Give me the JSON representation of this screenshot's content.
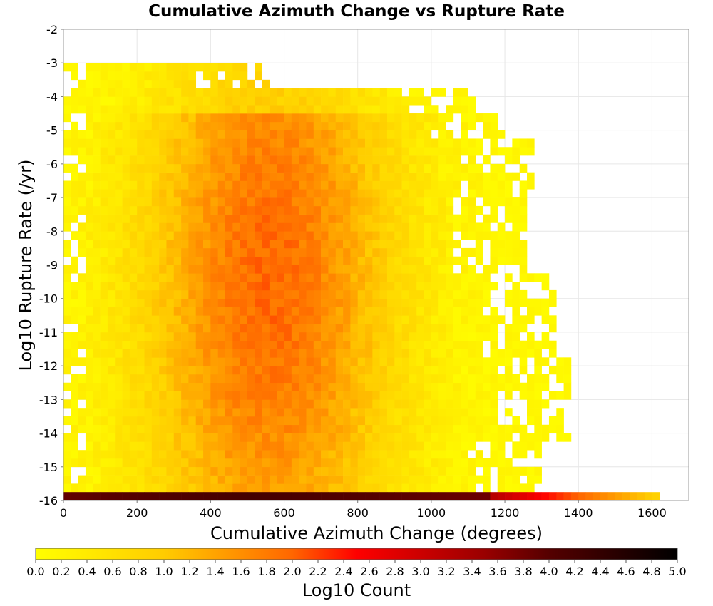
{
  "chart_data": {
    "type": "heatmap",
    "title": "Cumulative Azimuth Change vs Rupture Rate",
    "xlabel": "Cumulative Azimuth Change (degrees)",
    "ylabel": "Log10 Rupture Rate (/yr)",
    "xlim": [
      0,
      1700
    ],
    "ylim": [
      -16,
      -2
    ],
    "x_ticks": [
      0,
      200,
      400,
      600,
      800,
      1000,
      1200,
      1400,
      1600
    ],
    "x_tick_labels": [
      "0",
      "200",
      "400",
      "600",
      "800",
      "1000",
      "1200",
      "1400",
      "1600"
    ],
    "y_ticks": [
      -2,
      -3,
      -4,
      -5,
      -6,
      -7,
      -8,
      -9,
      -10,
      -11,
      -12,
      -13,
      -14,
      -15,
      -16
    ],
    "y_tick_labels": [
      "-2",
      "-3",
      "-4",
      "-5",
      "-6",
      "-7",
      "-8",
      "-9",
      "-10",
      "-11",
      "-12",
      "-13",
      "-14",
      "-15",
      "-16"
    ],
    "grid": true,
    "bin_width_x": 20,
    "bin_height_y": 0.25,
    "colorbar": {
      "label": "Log10 Count",
      "range": [
        0,
        5
      ],
      "tick_labels": [
        "0.0",
        "0.2",
        "0.4",
        "0.6",
        "0.8",
        "1.0",
        "1.2",
        "1.4",
        "1.6",
        "1.8",
        "2.0",
        "2.2",
        "2.4",
        "2.6",
        "2.8",
        "3.0",
        "3.2",
        "3.4",
        "3.6",
        "3.8",
        "4.0",
        "4.2",
        "4.4",
        "4.6",
        "4.8",
        "5.0"
      ],
      "colormap": [
        {
          "value": 0.0,
          "color": "#ffff00"
        },
        {
          "value": 1.0,
          "color": "#ffcc00"
        },
        {
          "value": 2.0,
          "color": "#ff6600"
        },
        {
          "value": 2.5,
          "color": "#ff0000"
        },
        {
          "value": 3.5,
          "color": "#990000"
        },
        {
          "value": 4.0,
          "color": "#550000"
        },
        {
          "value": 5.0,
          "color": "#000000"
        }
      ]
    },
    "bottom_row_note": "Row at Log10 Rupture Rate = -16 spans x 0-1620 with high counts (~4.0 at x<1200 fading to ~1.0 near 1620)"
  }
}
